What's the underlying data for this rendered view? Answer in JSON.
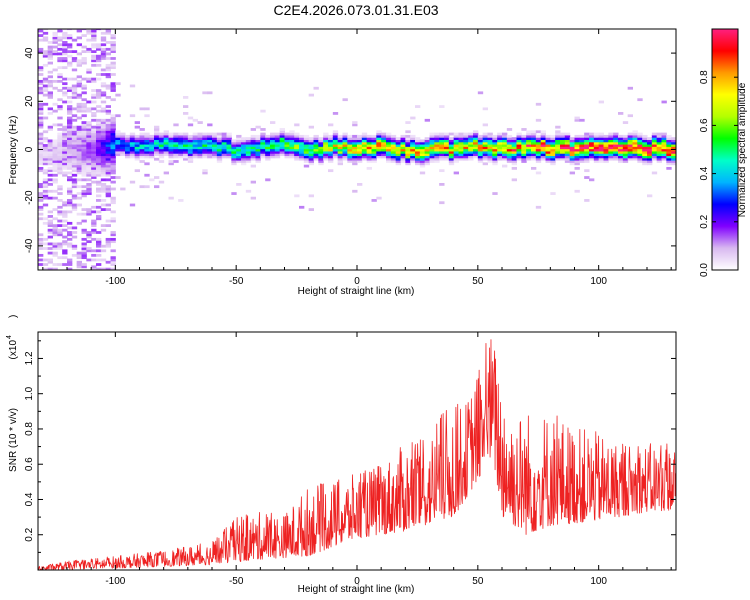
{
  "title": "C2E4.2026.073.01.31.E03",
  "chart_data": [
    {
      "type": "heatmap",
      "xlabel": "Height of straight line (km)",
      "ylabel": "Frequency (Hz)",
      "xlim": [
        -132,
        132
      ],
      "ylim": [
        -50,
        50
      ],
      "x_ticks": [
        -100,
        -50,
        0,
        50,
        100
      ],
      "y_ticks": [
        -40,
        -20,
        0,
        20,
        40
      ],
      "colorbar": {
        "label": "Normalized spectral amplitude",
        "range": [
          0,
          1
        ],
        "ticks": [
          0.0,
          0.2,
          0.4,
          0.6,
          0.8
        ],
        "colormap": [
          "#ffffff",
          "#d8b8f0",
          "#8000ff",
          "#0000ff",
          "#00b4ff",
          "#00ffc8",
          "#00ff00",
          "#b4ff00",
          "#ffff00",
          "#ff9a00",
          "#ff0000",
          "#ff2080"
        ]
      },
      "ridge_center_hz": [
        [
          -128,
          -2
        ],
        [
          -120,
          -1
        ],
        [
          -110,
          0
        ],
        [
          -100,
          2
        ],
        [
          -90,
          1
        ],
        [
          -80,
          2
        ],
        [
          -70,
          1
        ],
        [
          -60,
          1
        ],
        [
          -50,
          -1
        ],
        [
          -40,
          1
        ],
        [
          -30,
          2
        ],
        [
          -20,
          -1
        ],
        [
          -10,
          1
        ],
        [
          0,
          0
        ],
        [
          10,
          1
        ],
        [
          20,
          -1
        ],
        [
          30,
          0
        ],
        [
          40,
          0
        ],
        [
          50,
          1
        ],
        [
          60,
          0
        ],
        [
          70,
          1
        ],
        [
          80,
          0
        ],
        [
          90,
          0
        ],
        [
          100,
          0
        ],
        [
          110,
          0
        ],
        [
          120,
          0
        ],
        [
          130,
          0
        ]
      ],
      "ridge_peak_amplitude": [
        [
          -128,
          0.05
        ],
        [
          -110,
          0.15
        ],
        [
          -100,
          0.35
        ],
        [
          -80,
          0.45
        ],
        [
          -60,
          0.45
        ],
        [
          -40,
          0.5
        ],
        [
          -20,
          0.6
        ],
        [
          0,
          0.75
        ],
        [
          20,
          0.75
        ],
        [
          40,
          0.75
        ],
        [
          60,
          0.8
        ],
        [
          75,
          0.85
        ],
        [
          92,
          0.95
        ],
        [
          110,
          0.95
        ],
        [
          132,
          0.95
        ]
      ]
    },
    {
      "type": "line",
      "xlabel": "Height of straight line (km)",
      "ylabel": "SNR (10 * v/v)",
      "y_scale_label": "(x10",
      "y_scale_exponent": "4",
      "xlim": [
        -132,
        132
      ],
      "ylim": [
        0,
        1.35
      ],
      "x_ticks": [
        -100,
        -50,
        0,
        50,
        100
      ],
      "y_ticks": [
        0.2,
        0.4,
        0.6,
        0.8,
        1.0,
        1.2
      ],
      "series": [
        {
          "color": "#ee2222",
          "envelope_max": [
            [
              -132,
              0.02
            ],
            [
              -120,
              0.05
            ],
            [
              -100,
              0.08
            ],
            [
              -80,
              0.11
            ],
            [
              -60,
              0.16
            ],
            [
              -50,
              0.3
            ],
            [
              -40,
              0.33
            ],
            [
              -30,
              0.32
            ],
            [
              -20,
              0.48
            ],
            [
              -10,
              0.5
            ],
            [
              0,
              0.55
            ],
            [
              10,
              0.6
            ],
            [
              20,
              0.72
            ],
            [
              30,
              0.75
            ],
            [
              35,
              0.9
            ],
            [
              40,
              0.95
            ],
            [
              45,
              0.95
            ],
            [
              50,
              1.12
            ],
            [
              53,
              1.3
            ],
            [
              56,
              1.35
            ],
            [
              60,
              1.1
            ],
            [
              65,
              0.9
            ],
            [
              70,
              0.92
            ],
            [
              80,
              0.9
            ],
            [
              90,
              0.82
            ],
            [
              100,
              0.78
            ],
            [
              110,
              0.72
            ],
            [
              120,
              0.72
            ],
            [
              132,
              0.72
            ]
          ],
          "envelope_min": [
            [
              -132,
              0.0
            ],
            [
              -100,
              0.01
            ],
            [
              -80,
              0.02
            ],
            [
              -60,
              0.03
            ],
            [
              -40,
              0.06
            ],
            [
              -20,
              0.08
            ],
            [
              0,
              0.18
            ],
            [
              20,
              0.22
            ],
            [
              40,
              0.3
            ],
            [
              52,
              0.55
            ],
            [
              56,
              0.65
            ],
            [
              60,
              0.3
            ],
            [
              70,
              0.2
            ],
            [
              80,
              0.25
            ],
            [
              100,
              0.28
            ],
            [
              120,
              0.33
            ],
            [
              132,
              0.34
            ]
          ]
        }
      ]
    }
  ]
}
